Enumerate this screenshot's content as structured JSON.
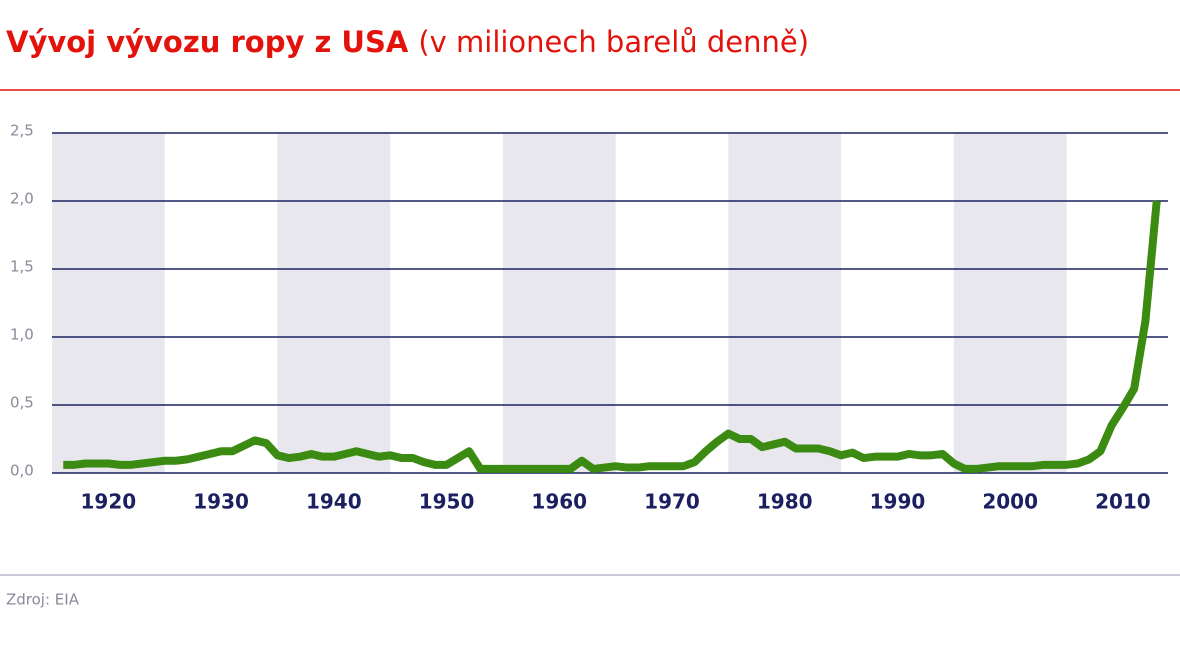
{
  "chart_data": {
    "type": "line",
    "title": "Vývoj vývozu ropy z USA",
    "subtitle": "(v milionech barelů denně)",
    "source": "Zdroj: EIA",
    "x": [
      1916,
      1917,
      1918,
      1919,
      1920,
      1921,
      1922,
      1923,
      1924,
      1925,
      1926,
      1927,
      1928,
      1929,
      1930,
      1931,
      1932,
      1933,
      1934,
      1935,
      1936,
      1937,
      1938,
      1939,
      1940,
      1941,
      1942,
      1943,
      1944,
      1945,
      1946,
      1947,
      1948,
      1949,
      1950,
      1951,
      1952,
      1953,
      1954,
      1955,
      1956,
      1957,
      1958,
      1959,
      1960,
      1961,
      1962,
      1963,
      1964,
      1965,
      1966,
      1967,
      1968,
      1969,
      1970,
      1971,
      1972,
      1973,
      1974,
      1975,
      1976,
      1977,
      1978,
      1979,
      1980,
      1981,
      1982,
      1983,
      1984,
      1985,
      1986,
      1987,
      1988,
      1989,
      1990,
      1991,
      1992,
      1993,
      1994,
      1995,
      1996,
      1997,
      1998,
      1999,
      2000,
      2001,
      2002,
      2003,
      2004,
      2005,
      2006,
      2007,
      2008,
      2009,
      2010,
      2011,
      2012,
      2013
    ],
    "series": [
      {
        "color": "#3b8a12",
        "values": [
          0.06,
          0.06,
          0.07,
          0.07,
          0.07,
          0.06,
          0.06,
          0.07,
          0.08,
          0.09,
          0.09,
          0.1,
          0.12,
          0.14,
          0.16,
          0.16,
          0.2,
          0.24,
          0.22,
          0.13,
          0.11,
          0.12,
          0.14,
          0.12,
          0.12,
          0.14,
          0.16,
          0.14,
          0.12,
          0.13,
          0.11,
          0.11,
          0.08,
          0.06,
          0.06,
          0.11,
          0.16,
          0.03,
          0.03,
          0.03,
          0.03,
          0.03,
          0.03,
          0.03,
          0.03,
          0.03,
          0.09,
          0.03,
          0.04,
          0.05,
          0.04,
          0.04,
          0.05,
          0.05,
          0.05,
          0.05,
          0.08,
          0.16,
          0.23,
          0.29,
          0.25,
          0.25,
          0.19,
          0.21,
          0.23,
          0.18,
          0.18,
          0.18,
          0.16,
          0.13,
          0.15,
          0.11,
          0.12,
          0.12,
          0.12,
          0.14,
          0.13,
          0.13,
          0.14,
          0.07,
          0.03,
          0.03,
          0.04,
          0.05,
          0.05,
          0.05,
          0.05,
          0.06,
          0.06,
          0.06,
          0.07,
          0.1,
          0.16,
          0.35,
          0.48,
          0.62,
          1.12,
          2.0
        ]
      }
    ],
    "xlim": [
      1915,
      2014
    ],
    "xticks": [
      1920,
      1930,
      1940,
      1950,
      1960,
      1970,
      1980,
      1990,
      2000,
      2010
    ],
    "ylim": [
      0,
      2.5
    ],
    "yticks": [
      {
        "value": 0,
        "label": "0,0"
      },
      {
        "value": 0.5,
        "label": "0,5"
      },
      {
        "value": 1,
        "label": "1,0"
      },
      {
        "value": 1.5,
        "label": "1,5"
      },
      {
        "value": 2,
        "label": "2,0"
      },
      {
        "value": 2.5,
        "label": "2,5"
      }
    ],
    "grid": true,
    "shaded_bands": true
  }
}
